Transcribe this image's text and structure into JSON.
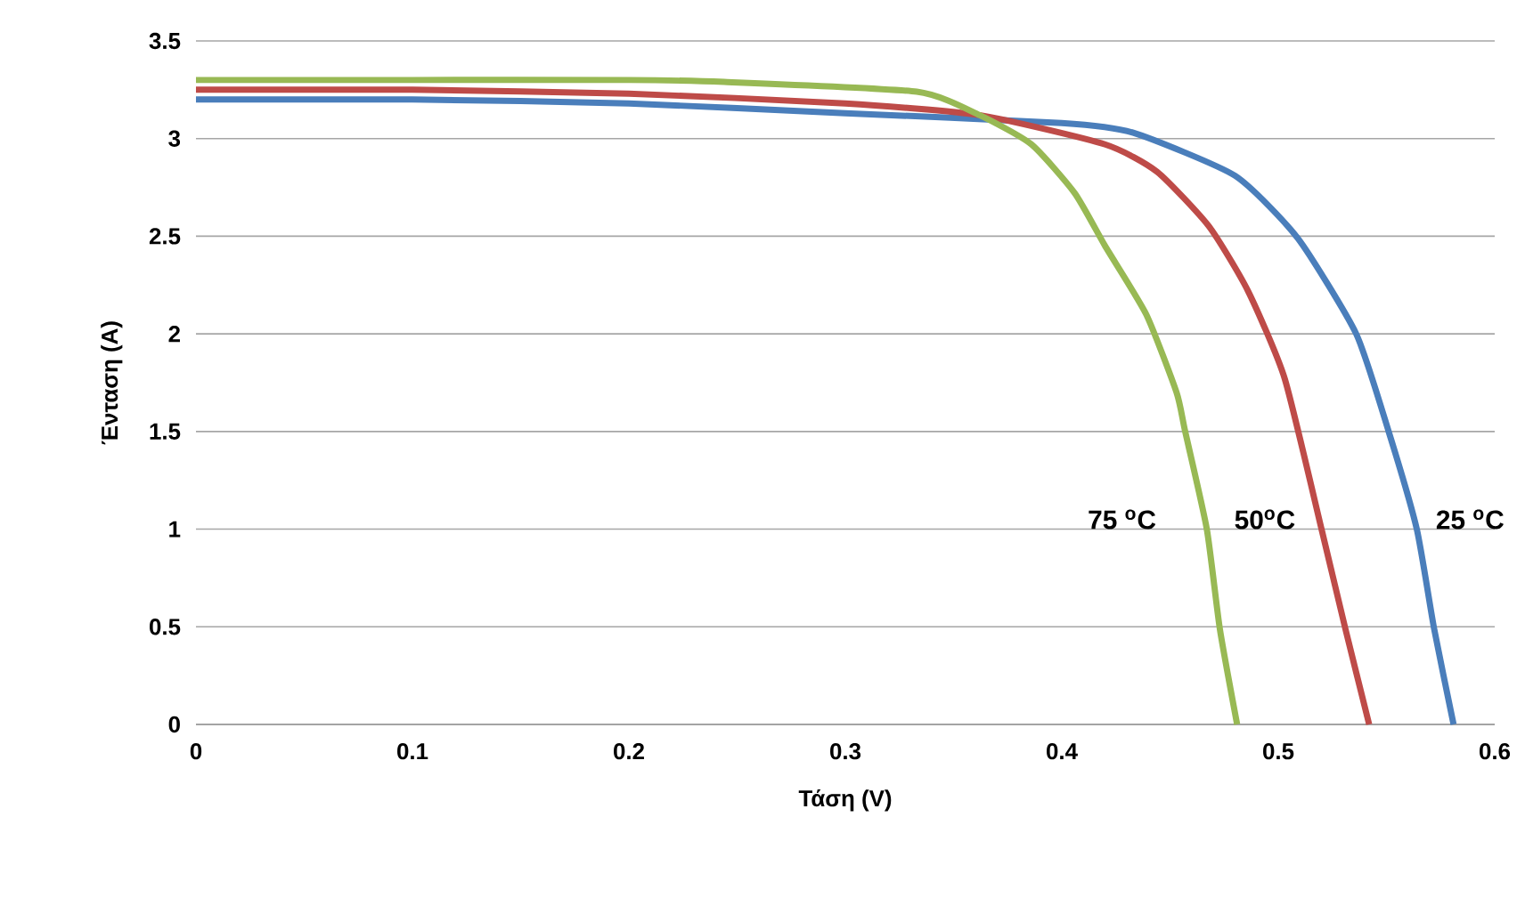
{
  "chart_data": {
    "type": "line",
    "xlabel": "Τάση (V)",
    "ylabel": "Ένταση (A)",
    "xlim": [
      0,
      0.6
    ],
    "ylim": [
      0,
      3.5
    ],
    "xticks": [
      0,
      0.1,
      0.2,
      0.3,
      0.4,
      0.5,
      0.6
    ],
    "yticks": [
      0,
      0.5,
      1,
      1.5,
      2,
      2.5,
      3,
      3.5
    ],
    "grid": "y",
    "marker": "none",
    "line_style": "solid",
    "series": [
      {
        "color": "#4a7ebb",
        "x": [
          0,
          0.1,
          0.2,
          0.3,
          0.4,
          0.433,
          0.48,
          0.509,
          0.536,
          0.551,
          0.564,
          0.572,
          0.581
        ],
        "values": [
          3.2,
          3.2,
          3.18,
          3.13,
          3.08,
          3.03,
          2.81,
          2.49,
          2.0,
          1.5,
          1.0,
          0.49,
          0
        ]
      },
      {
        "color": "#be4b48",
        "x": [
          0,
          0.1,
          0.2,
          0.3,
          0.362,
          0.42,
          0.444,
          0.468,
          0.486,
          0.503,
          0.52,
          0.531,
          0.542
        ],
        "values": [
          3.25,
          3.25,
          3.23,
          3.18,
          3.12,
          2.97,
          2.83,
          2.55,
          2.22,
          1.77,
          1.0,
          0.49,
          0
        ]
      },
      {
        "color": "#98b954",
        "x": [
          0,
          0.1,
          0.2,
          0.244,
          0.333,
          0.362,
          0.386,
          0.406,
          0.42,
          0.439,
          0.453,
          0.457,
          0.467,
          0.473,
          0.481
        ],
        "values": [
          3.3,
          3.3,
          3.3,
          3.29,
          3.24,
          3.12,
          2.97,
          2.72,
          2.45,
          2.1,
          1.7,
          1.5,
          1.0,
          0.49,
          0
        ]
      }
    ],
    "annotations": [
      "75 $^{o}$C",
      "50$^{o}$C",
      "25 $^{o}$C"
    ]
  }
}
